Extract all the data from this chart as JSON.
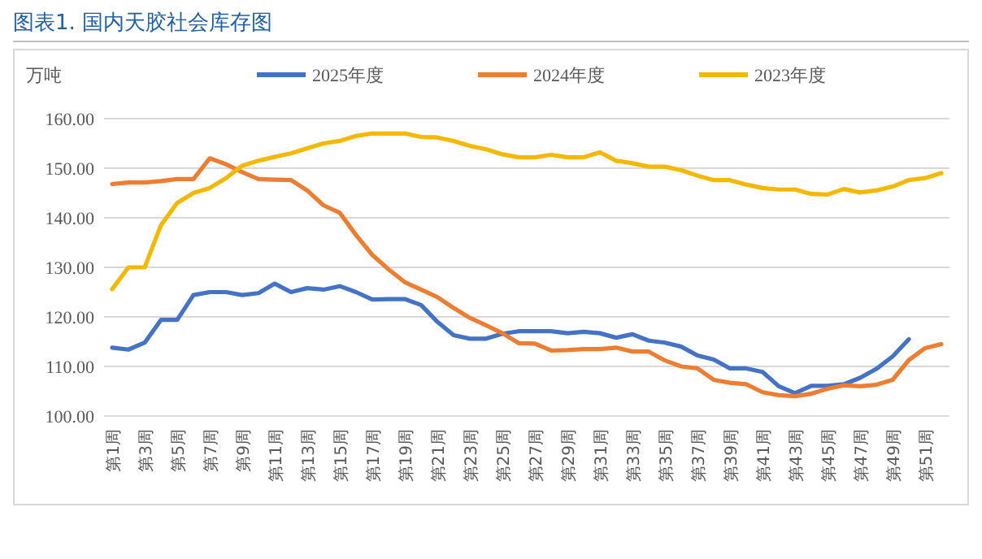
{
  "chart_data": {
    "type": "line",
    "title": "图表1. 国内天胶社会库存图",
    "ylabel": "万吨",
    "categories": [
      "第1周",
      null,
      "第3周",
      null,
      "第5周",
      null,
      "第7周",
      null,
      "第9周",
      null,
      "第11周",
      null,
      "第13周",
      null,
      "第15周",
      null,
      "第17周",
      null,
      "第19周",
      null,
      "第21周",
      null,
      "第23周",
      null,
      "第25周",
      null,
      "第27周",
      null,
      "第29周",
      null,
      "第31周",
      null,
      "第33周",
      null,
      "第35周",
      null,
      "第37周",
      null,
      "第39周",
      null,
      "第41周",
      null,
      "第43周",
      null,
      "第45周",
      null,
      "第47周",
      null,
      "第49周",
      null,
      "第51周",
      null
    ],
    "series": [
      {
        "name": "2025年度",
        "color": "#4472c4",
        "values": [
          113.8,
          113.4,
          114.8,
          119.4,
          119.4,
          124.4,
          125,
          125,
          124.4,
          124.8,
          126.7,
          125,
          125.8,
          125.5,
          126.2,
          125,
          123.5,
          123.6,
          123.6,
          122.4,
          119,
          116.3,
          115.6,
          115.6,
          116.6,
          117.1,
          117.1,
          117.1,
          116.7,
          117,
          116.7,
          115.8,
          116.5,
          115.2,
          114.8,
          114,
          112.2,
          111.4,
          109.6,
          109.6,
          108.9,
          106,
          104.6,
          106.1,
          106.1,
          106.4,
          107.7,
          109.5,
          112,
          115.5,
          null,
          null
        ]
      },
      {
        "name": "2024年度",
        "color": "#ed7d31",
        "values": [
          146.8,
          147.1,
          147.1,
          147.4,
          147.8,
          147.8,
          152,
          150.8,
          149.2,
          147.8,
          147.7,
          147.6,
          145.5,
          142.5,
          141,
          136.5,
          132.5,
          129.6,
          127,
          125.5,
          124,
          121.8,
          119.8,
          118.3,
          116.7,
          114.7,
          114.6,
          113.2,
          113.3,
          113.5,
          113.5,
          113.8,
          113,
          113,
          111.2,
          110,
          109.6,
          107.3,
          106.7,
          106.4,
          104.8,
          104.2,
          104,
          104.5,
          105.5,
          106.2,
          106,
          106.3,
          107.3,
          111.3,
          113.7,
          114.5
        ]
      },
      {
        "name": "2023年度",
        "color": "#f5b800",
        "values": [
          125.6,
          130,
          130,
          138.5,
          143,
          145,
          146,
          148,
          150.5,
          151.5,
          152.3,
          153,
          154,
          155,
          155.5,
          156.5,
          157,
          157,
          157,
          156.3,
          156.2,
          155.5,
          154.5,
          153.8,
          152.8,
          152.2,
          152.2,
          152.7,
          152.2,
          152.2,
          153.2,
          151.5,
          151,
          150.3,
          150.3,
          149.6,
          148.5,
          147.6,
          147.6,
          146.7,
          146,
          145.7,
          145.7,
          144.8,
          144.7,
          145.8,
          145.1,
          145.5,
          146.3,
          147.6,
          148,
          149
        ]
      }
    ],
    "ylim": [
      100,
      160
    ],
    "yticks": [
      {
        "value": 100,
        "label": "100.00"
      },
      {
        "value": 110,
        "label": "110.00"
      },
      {
        "value": 120,
        "label": "120.00"
      },
      {
        "value": 130,
        "label": "130.00"
      },
      {
        "value": 140,
        "label": "140.00"
      },
      {
        "value": 150,
        "label": "150.00"
      },
      {
        "value": 160,
        "label": "160.00"
      }
    ],
    "grid": "y",
    "legend": "top",
    "marker": "none",
    "line_style": "solid"
  }
}
